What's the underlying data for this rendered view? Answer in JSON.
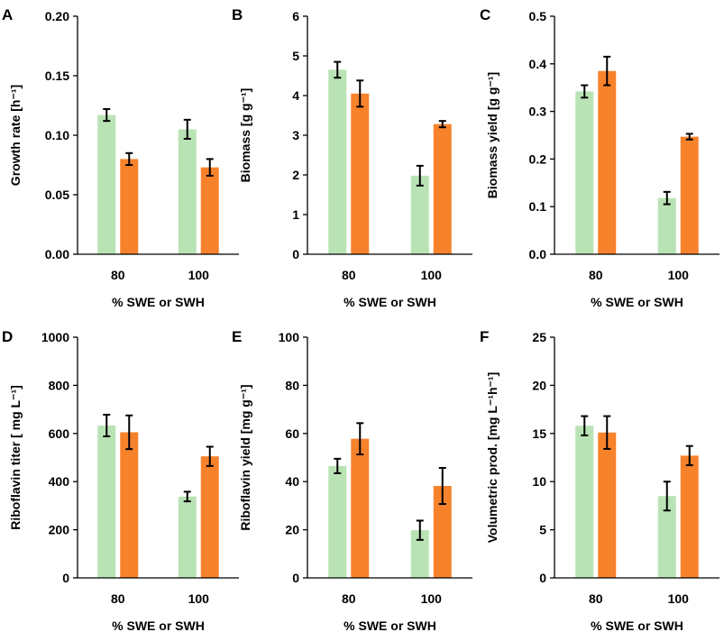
{
  "colors": {
    "swe": "#b9e3b4",
    "swh": "#f7822c"
  },
  "chart_data": [
    {
      "letter": "A",
      "type": "bar",
      "categories": [
        "80",
        "100"
      ],
      "series": [
        {
          "name": "SWE",
          "values": [
            0.117,
            0.105
          ],
          "errors": [
            0.005,
            0.008
          ]
        },
        {
          "name": "SWH",
          "values": [
            0.08,
            0.073
          ],
          "errors": [
            0.005,
            0.007
          ]
        }
      ],
      "ylabel": "Growth rate [h⁻¹]",
      "xlabel": "% SWE or SWH",
      "ylim": [
        0,
        0.2
      ],
      "yticks": [
        "0.00",
        "0.05",
        "0.10",
        "0.15",
        "0.20"
      ]
    },
    {
      "letter": "B",
      "type": "bar",
      "categories": [
        "80",
        "100"
      ],
      "series": [
        {
          "name": "SWE",
          "values": [
            4.65,
            1.98
          ],
          "errors": [
            0.2,
            0.25
          ]
        },
        {
          "name": "SWH",
          "values": [
            4.05,
            3.28
          ],
          "errors": [
            0.33,
            0.08
          ]
        }
      ],
      "ylabel": "Biomass [g g⁻¹]",
      "xlabel": "% SWE or SWH",
      "ylim": [
        0,
        6
      ],
      "yticks": [
        "0",
        "1",
        "2",
        "3",
        "4",
        "5",
        "6"
      ]
    },
    {
      "letter": "C",
      "type": "bar",
      "categories": [
        "80",
        "100"
      ],
      "series": [
        {
          "name": "SWE",
          "values": [
            0.342,
            0.118
          ],
          "errors": [
            0.013,
            0.013
          ]
        },
        {
          "name": "SWH",
          "values": [
            0.385,
            0.247
          ],
          "errors": [
            0.03,
            0.006
          ]
        }
      ],
      "ylabel": "Biomass yield [g g⁻¹]",
      "xlabel": "% SWE or SWH",
      "ylim": [
        0,
        0.5
      ],
      "yticks": [
        "0.0",
        "0.1",
        "0.2",
        "0.3",
        "0.4",
        "0.5"
      ]
    },
    {
      "letter": "D",
      "type": "bar",
      "categories": [
        "80",
        "100"
      ],
      "series": [
        {
          "name": "SWE",
          "values": [
            633,
            338
          ],
          "errors": [
            45,
            20
          ]
        },
        {
          "name": "SWH",
          "values": [
            605,
            505
          ],
          "errors": [
            70,
            40
          ]
        }
      ],
      "ylabel": "Riboflavin titer [ mg L⁻¹]",
      "xlabel": "% SWE or SWH",
      "ylim": [
        0,
        1000
      ],
      "yticks": [
        "0",
        "200",
        "400",
        "600",
        "800",
        "1000"
      ]
    },
    {
      "letter": "E",
      "type": "bar",
      "categories": [
        "80",
        "100"
      ],
      "series": [
        {
          "name": "SWE",
          "values": [
            46.5,
            19.8
          ],
          "errors": [
            3,
            4
          ]
        },
        {
          "name": "SWH",
          "values": [
            57.8,
            38.2
          ],
          "errors": [
            6.5,
            7.5
          ]
        }
      ],
      "ylabel": "Riboflavin yield [mg g⁻¹]",
      "xlabel": "% SWE or SWH",
      "ylim": [
        0,
        100
      ],
      "yticks": [
        "0",
        "20",
        "40",
        "60",
        "80",
        "100"
      ]
    },
    {
      "letter": "F",
      "type": "bar",
      "categories": [
        "80",
        "100"
      ],
      "series": [
        {
          "name": "SWE",
          "values": [
            15.8,
            8.5
          ],
          "errors": [
            1.0,
            1.5
          ]
        },
        {
          "name": "SWH",
          "values": [
            15.1,
            12.7
          ],
          "errors": [
            1.7,
            1.0
          ]
        }
      ],
      "ylabel": "Volumetric prod. [mg L⁻¹h⁻¹]",
      "xlabel": "% SWE or SWH",
      "ylim": [
        0,
        25
      ],
      "yticks": [
        "0",
        "5",
        "10",
        "15",
        "20",
        "25"
      ]
    }
  ]
}
